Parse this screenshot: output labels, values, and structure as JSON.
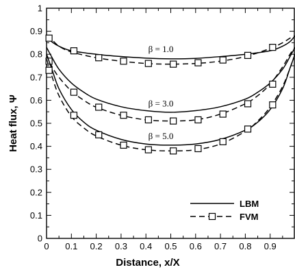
{
  "chart_data": {
    "type": "line",
    "xlabel": "Distance, x/X",
    "ylabel": "Heat flux, Ψ",
    "xlim": [
      0,
      1
    ],
    "ylim": [
      0,
      1
    ],
    "xticks": [
      "0",
      "0.1",
      "0.2",
      "0.3",
      "0.4",
      "0.5",
      "0.6",
      "0.7",
      "0.8",
      "0.9"
    ],
    "yticks": [
      "0",
      "0.1",
      "0.2",
      "0.3",
      "0.4",
      "0.5",
      "0.6",
      "0.7",
      "0.8",
      "0.9",
      "1"
    ],
    "grid": false,
    "legend_position": "bottom-right",
    "legend": [
      {
        "label": "LBM",
        "style": "solid"
      },
      {
        "label": "FVM",
        "style": "dashed-square"
      }
    ],
    "annotations": [
      "β = 1.0",
      "β = 3.0",
      "β = 5.0"
    ],
    "series": [
      {
        "method": "LBM",
        "beta": "β = 1.0",
        "x": [
          0,
          0.02,
          0.05,
          0.1,
          0.2,
          0.3,
          0.4,
          0.5,
          0.6,
          0.7,
          0.8,
          0.9,
          0.95,
          0.98,
          1.0
        ],
        "y": [
          0.88,
          0.855,
          0.835,
          0.815,
          0.8,
          0.79,
          0.783,
          0.78,
          0.782,
          0.79,
          0.8,
          0.815,
          0.835,
          0.855,
          0.88
        ]
      },
      {
        "method": "FVM",
        "beta": "β = 1.0",
        "x": [
          0,
          0.02,
          0.05,
          0.1,
          0.2,
          0.3,
          0.4,
          0.5,
          0.6,
          0.7,
          0.8,
          0.9,
          0.95,
          0.98,
          1.0
        ],
        "y": [
          0.88,
          0.865,
          0.835,
          0.81,
          0.785,
          0.77,
          0.76,
          0.757,
          0.76,
          0.77,
          0.79,
          0.825,
          0.85,
          0.87,
          0.88
        ],
        "markers_x": [
          0.01,
          0.11,
          0.21,
          0.31,
          0.41,
          0.51,
          0.61,
          0.71,
          0.81,
          0.91
        ],
        "markers_y": [
          0.87,
          0.815,
          0.785,
          0.77,
          0.76,
          0.757,
          0.763,
          0.775,
          0.795,
          0.83
        ]
      },
      {
        "method": "LBM",
        "beta": "β = 3.0",
        "x": [
          0,
          0.02,
          0.05,
          0.1,
          0.15,
          0.2,
          0.3,
          0.4,
          0.5,
          0.6,
          0.7,
          0.8,
          0.85,
          0.9,
          0.95,
          0.98,
          1.0
        ],
        "y": [
          0.83,
          0.79,
          0.735,
          0.675,
          0.635,
          0.605,
          0.572,
          0.555,
          0.548,
          0.555,
          0.572,
          0.605,
          0.635,
          0.675,
          0.735,
          0.79,
          0.83
        ]
      },
      {
        "method": "FVM",
        "beta": "β = 3.0",
        "x": [
          0,
          0.02,
          0.05,
          0.1,
          0.15,
          0.2,
          0.3,
          0.4,
          0.5,
          0.6,
          0.7,
          0.8,
          0.85,
          0.9,
          0.95,
          0.98,
          1.0
        ],
        "y": [
          0.8,
          0.75,
          0.7,
          0.64,
          0.6,
          0.57,
          0.535,
          0.515,
          0.51,
          0.515,
          0.54,
          0.585,
          0.62,
          0.67,
          0.745,
          0.8,
          0.83
        ],
        "markers_x": [
          0.01,
          0.11,
          0.21,
          0.31,
          0.41,
          0.51,
          0.61,
          0.71,
          0.81,
          0.91
        ],
        "markers_y": [
          0.77,
          0.635,
          0.57,
          0.535,
          0.515,
          0.51,
          0.515,
          0.54,
          0.585,
          0.67
        ]
      },
      {
        "method": "LBM",
        "beta": "β = 5.0",
        "x": [
          0,
          0.02,
          0.05,
          0.1,
          0.15,
          0.2,
          0.3,
          0.4,
          0.5,
          0.6,
          0.7,
          0.8,
          0.85,
          0.9,
          0.95,
          0.98,
          1.0
        ],
        "y": [
          0.8,
          0.74,
          0.65,
          0.56,
          0.505,
          0.47,
          0.43,
          0.41,
          0.405,
          0.41,
          0.43,
          0.47,
          0.505,
          0.56,
          0.65,
          0.74,
          0.8
        ],
        "markers_x": [],
        "markers_y": []
      },
      {
        "method": "FVM",
        "beta": "β = 5.0",
        "x": [
          0,
          0.02,
          0.05,
          0.1,
          0.15,
          0.2,
          0.3,
          0.4,
          0.5,
          0.6,
          0.7,
          0.8,
          0.85,
          0.9,
          0.95,
          0.98,
          1.0
        ],
        "y": [
          0.78,
          0.71,
          0.62,
          0.53,
          0.48,
          0.445,
          0.405,
          0.385,
          0.38,
          0.385,
          0.41,
          0.465,
          0.51,
          0.57,
          0.66,
          0.74,
          0.8
        ],
        "markers_x": [
          0.01,
          0.11,
          0.21,
          0.31,
          0.41,
          0.51,
          0.61,
          0.71,
          0.81,
          0.91
        ],
        "markers_y": [
          0.73,
          0.535,
          0.45,
          0.405,
          0.385,
          0.38,
          0.39,
          0.42,
          0.475,
          0.58
        ]
      }
    ]
  }
}
